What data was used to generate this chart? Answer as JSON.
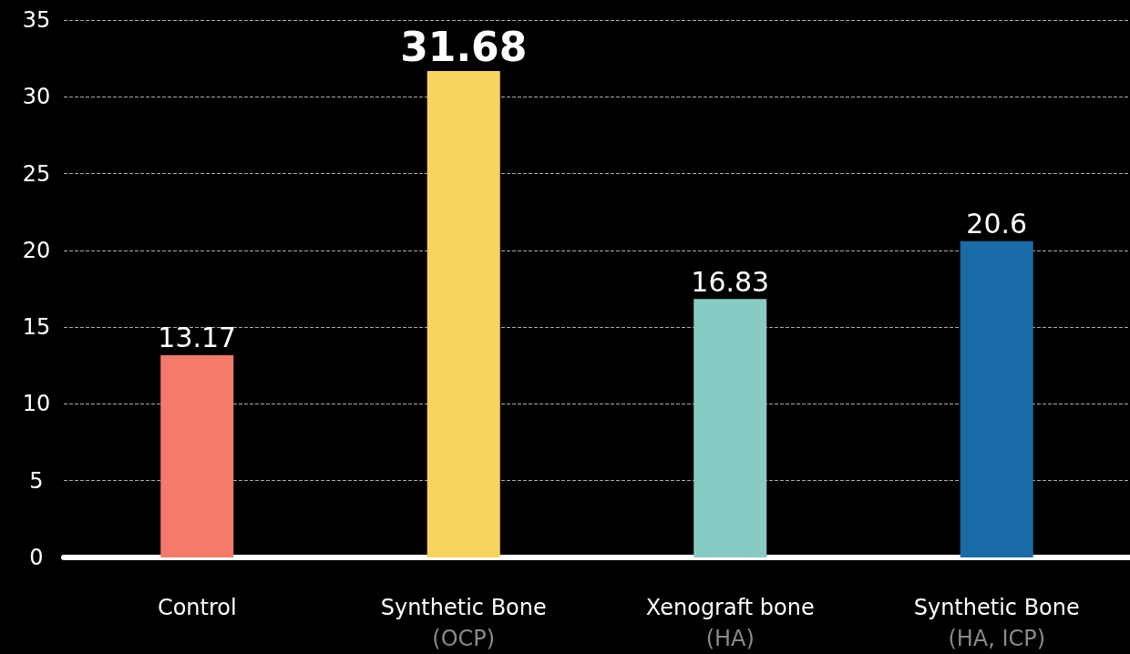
{
  "chart_data": {
    "type": "bar",
    "categories": [
      "Control",
      "Synthetic Bone\n(OCP)",
      "Xenograft bone\n(HA)",
      "Synthetic Bone\n(HA, ICP)"
    ],
    "values": [
      13.17,
      31.68,
      16.83,
      20.6
    ],
    "colors": [
      "#f47a6a",
      "#f8d35e",
      "#87cbc4",
      "#1a6ca8"
    ],
    "ylim": [
      0,
      35
    ],
    "yticks": [
      0,
      5,
      10,
      15,
      20,
      25,
      30,
      35
    ],
    "grid": "y",
    "data_labels": true
  }
}
